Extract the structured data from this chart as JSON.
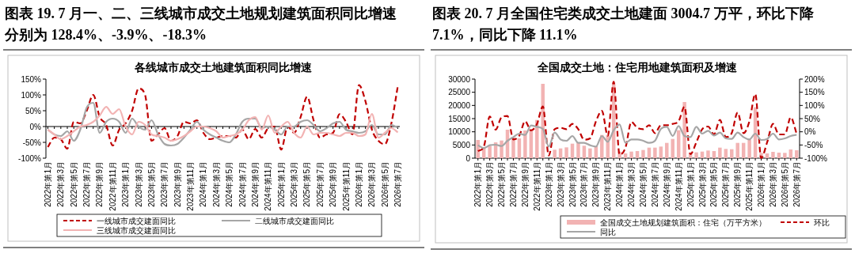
{
  "chart_data": [
    {
      "type": "line",
      "title": "图表 19. 7 月一、二、三线城市成交土地规划建筑面积同比增速分别为 128.4%、-3.9%、-18.3%",
      "subtitle": "各线城市成交土地建筑面积同比增速",
      "categories": [
        "2022年第1月",
        null,
        "2022年第3月",
        null,
        "2022年第5月",
        null,
        "2022年第7月",
        null,
        "2022年第9月",
        null,
        "2022年第11月",
        null,
        "2023年第1月",
        null,
        "2023年第3月",
        null,
        "2023年第5月",
        null,
        "2023年第7月",
        null,
        "2023年第9月",
        null,
        "2023年第11月",
        null,
        "2024年第1月",
        null,
        "2024年第3月",
        null,
        "2024年第5月",
        null,
        "2024年第7月",
        null,
        "2024年第9月",
        null,
        "2024年第11月",
        null,
        "2025年第1月",
        null,
        "2025年第3月",
        null,
        "2025年第5月",
        null,
        "2025年第7月",
        null,
        "2025年第9月",
        null,
        "2025年第11月",
        null,
        "2026年第1月",
        null,
        "2026年第3月",
        null,
        "2026年第5月",
        null,
        "2026年第7月"
      ],
      "series": [
        {
          "name": "一线城市成交建面同比",
          "color": "#c00000",
          "line_style": "dashed",
          "values": [
            -65,
            -35,
            -40,
            -70,
            15,
            10,
            50,
            100,
            30,
            5,
            -60,
            -10,
            10,
            50,
            120,
            100,
            -45,
            -25,
            -5,
            -45,
            -30,
            15,
            10,
            20,
            -20,
            -40,
            -35,
            -30,
            -30,
            -35,
            -10,
            -40,
            -8,
            -35,
            -5,
            0,
            -73,
            0,
            -20,
            30,
            94,
            20,
            -35,
            -25,
            -20,
            39,
            15,
            -25,
            131,
            80,
            -10,
            -45,
            -56,
            10,
            128.4
          ]
        },
        {
          "name": "二线城市成交建面同比",
          "color": "#a6a6a6",
          "line_style": "solid",
          "values": [
            -10,
            -25,
            -30,
            -15,
            -45,
            -10,
            60,
            75,
            -20,
            15,
            25,
            15,
            -20,
            25,
            0,
            -10,
            20,
            -25,
            -55,
            -60,
            -55,
            -35,
            -10,
            15,
            -10,
            -25,
            -35,
            -45,
            -50,
            -25,
            15,
            25,
            25,
            -5,
            0,
            -10,
            -25,
            0,
            0,
            15,
            20,
            5,
            -15,
            -5,
            10,
            15,
            -10,
            -15,
            -20,
            -15,
            5,
            -25,
            -25,
            5,
            -3.9
          ]
        },
        {
          "name": "三线城市成交建面同比",
          "color": "#f2b3b3",
          "line_style": "solid",
          "values": [
            -10,
            -25,
            -40,
            -30,
            -15,
            0,
            5,
            15,
            35,
            62,
            40,
            55,
            0,
            -25,
            15,
            5,
            -25,
            -30,
            -35,
            -45,
            -40,
            -30,
            -15,
            0,
            0,
            -5,
            -15,
            -35,
            -30,
            -25,
            -10,
            20,
            30,
            -10,
            35,
            -20,
            0,
            15,
            -20,
            -35,
            0,
            -25,
            -20,
            -20,
            -25,
            -30,
            -20,
            -20,
            -30,
            -25,
            40,
            -35,
            -20,
            -5,
            -18.3
          ]
        }
      ],
      "ylim": [
        -100,
        150
      ],
      "yticks": [
        {
          "value": -100,
          "label": "-100%"
        },
        {
          "value": -50,
          "label": "-50%"
        },
        {
          "value": 0,
          "label": "0%"
        },
        {
          "value": 50,
          "label": "50%"
        },
        {
          "value": 100,
          "label": "100%"
        },
        {
          "value": 150,
          "label": "150%"
        }
      ],
      "legend": "bottom"
    },
    {
      "type": "bar",
      "title": "图表 20. 7 月全国住宅类成交土地建面 3004.7 万平，环比下降 7.1%，同比下降 11.1%",
      "subtitle": "全国成交土地：住宅用地建筑面积及增速",
      "categories": [
        "2022年第1月",
        null,
        "2022年第3月",
        null,
        "2022年第5月",
        null,
        "2022年第7月",
        null,
        "2022年第9月",
        null,
        "2022年第11月",
        null,
        "2023年第1月",
        null,
        "2023年第3月",
        null,
        "2023年第5月",
        null,
        "2023年第7月",
        null,
        "2023年第9月",
        null,
        "2023年第11月",
        null,
        "2024年第1月",
        null,
        "2024年第3月",
        null,
        "2024年第5月",
        null,
        "2024年第7月",
        null,
        "2024年第9月",
        null,
        "2024年第11月",
        null,
        "2025年第1月",
        null,
        "2025年第3月",
        null,
        "2025年第5月",
        null,
        "2025年第7月",
        null,
        "2025年第9月",
        null,
        "2025年第11月",
        null,
        "2026年第1月",
        null,
        "2026年第3月",
        null,
        "2026年第5月",
        null,
        "2026年第7月"
      ],
      "series": [
        {
          "name": "全国成交土地规划建筑面积：住宅（万平方米）",
          "color": "#f2b3b3",
          "values": [
            6900,
            4000,
            4600,
            6000,
            6700,
            10800,
            8000,
            7500,
            10500,
            11000,
            14500,
            28200,
            null,
            3200,
            3700,
            4100,
            5500,
            6000,
            4700,
            3700,
            4500,
            8800,
            8800,
            28000,
            2500,
            1800,
            2500,
            2700,
            3100,
            4000,
            4000,
            4400,
            5800,
            7300,
            10600,
            21300,
            2000,
            2200,
            2500,
            2900,
            2700,
            4000,
            3500,
            3400,
            5800,
            5800,
            7100,
            19300,
            2000,
            1800,
            2400,
            2100,
            2000,
            3300,
            3004.7
          ]
        },
        {
          "name": "环比",
          "type": "line",
          "axis": "y2",
          "color": "#c00000",
          "line_style": "dashed",
          "values": [
            -73,
            -56,
            58,
            8,
            55,
            60,
            -29,
            -15,
            40,
            5,
            30,
            96,
            -90,
            10,
            15,
            10,
            30,
            10,
            -30,
            -25,
            40,
            80,
            -15,
            190,
            -87,
            -60,
            37,
            15,
            10,
            25,
            -5,
            25,
            25,
            30,
            40,
            95,
            -85,
            -40,
            10,
            20,
            -10,
            45,
            -20,
            -5,
            73,
            -5,
            40,
            143,
            -100,
            -40,
            30,
            -10,
            -10,
            55,
            -7.1
          ]
        },
        {
          "name": "同比",
          "type": "line",
          "axis": "y2",
          "color": "#a6a6a6",
          "line_style": "solid",
          "values": [
            -51,
            -62,
            -51,
            -49,
            -54,
            -34,
            -20,
            -7,
            -12,
            24,
            19,
            11,
            -56,
            -3,
            -29,
            -34,
            -16,
            -42,
            -42,
            -51,
            -56,
            -16,
            -38,
            6,
            28,
            -42,
            -29,
            -29,
            -34,
            -42,
            -34,
            11,
            19,
            -16,
            22,
            -16,
            -20,
            19,
            -7,
            4,
            -14,
            -3,
            -25,
            -27,
            -3,
            -20,
            -29,
            -7,
            -31,
            -27,
            -7,
            -29,
            -25,
            -16,
            -11.1
          ]
        }
      ],
      "ylim": [
        0,
        30000
      ],
      "yticks": [
        0,
        5000,
        10000,
        15000,
        20000,
        25000,
        30000
      ],
      "y2lim": [
        -100,
        200
      ],
      "y2ticks": [
        {
          "value": -100,
          "label": "-100%"
        },
        {
          "value": -50,
          "label": "-50%"
        },
        {
          "value": 0,
          "label": "0%"
        },
        {
          "value": 50,
          "label": "50%"
        },
        {
          "value": 100,
          "label": "100%"
        },
        {
          "value": 150,
          "label": "150%"
        },
        {
          "value": 200,
          "label": "200%"
        }
      ],
      "legend": "bottom"
    }
  ]
}
